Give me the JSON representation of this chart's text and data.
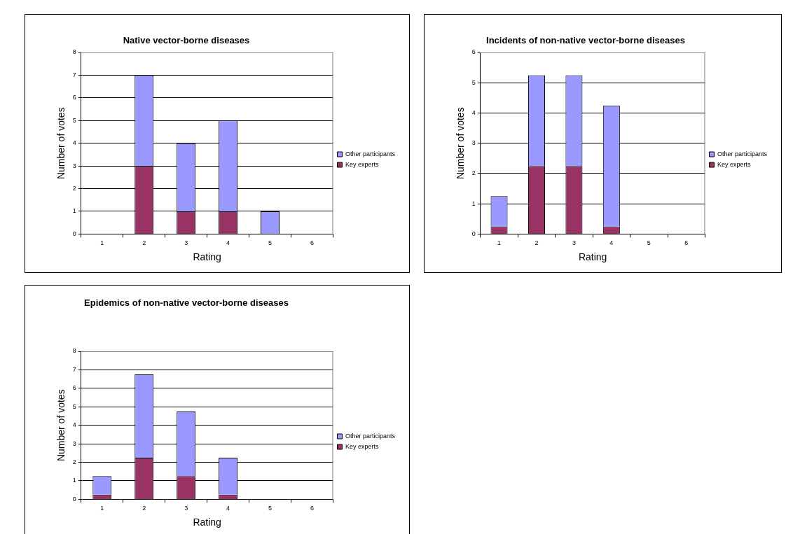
{
  "chart_data": [
    {
      "type": "bar",
      "title": "Native vector-borne diseases",
      "xlabel": "Rating",
      "ylabel": "Number of votes",
      "categories": [
        "1",
        "2",
        "3",
        "4",
        "5",
        "6"
      ],
      "stacked": true,
      "ylim": [
        0,
        8
      ],
      "yticks": [
        0,
        1,
        2,
        3,
        4,
        5,
        6,
        7,
        8
      ],
      "grid": "y",
      "legend": "right",
      "series": [
        {
          "name": "Key experts",
          "color": "#993366",
          "values": [
            0,
            3,
            1,
            1,
            0,
            0
          ]
        },
        {
          "name": "Other participants",
          "color": "#9999ff",
          "values": [
            0,
            4,
            3,
            4,
            1,
            0
          ]
        }
      ]
    },
    {
      "type": "bar",
      "title": "Incidents of non-native vector-borne diseases",
      "xlabel": "Rating",
      "ylabel": "Number of votes",
      "categories": [
        "1",
        "2",
        "3",
        "4",
        "5",
        "6"
      ],
      "stacked": true,
      "ylim": [
        0,
        6
      ],
      "yticks": [
        0,
        1,
        2,
        3,
        4,
        5,
        6
      ],
      "grid": "y",
      "legend": "right",
      "series": [
        {
          "name": "Key experts",
          "color": "#993366",
          "values": [
            0.25,
            2.25,
            2.25,
            0.25,
            0,
            0
          ]
        },
        {
          "name": "Other participants",
          "color": "#9999ff",
          "values": [
            1,
            3,
            3,
            4,
            0,
            0
          ]
        }
      ]
    },
    {
      "type": "bar",
      "title": "Epidemics of non-native vector-borne diseases",
      "xlabel": "Rating",
      "ylabel": "Number of votes",
      "categories": [
        "1",
        "2",
        "3",
        "4",
        "5",
        "6"
      ],
      "stacked": true,
      "ylim": [
        0,
        8
      ],
      "yticks": [
        0,
        1,
        2,
        3,
        4,
        5,
        6,
        7,
        8
      ],
      "grid": "y",
      "legend": "right",
      "series": [
        {
          "name": "Key experts",
          "color": "#993366",
          "values": [
            0.25,
            2.25,
            1.25,
            0.25,
            0,
            0
          ]
        },
        {
          "name": "Other participants",
          "color": "#9999ff",
          "values": [
            1,
            4.5,
            3.5,
            2,
            0,
            0
          ]
        }
      ]
    }
  ]
}
